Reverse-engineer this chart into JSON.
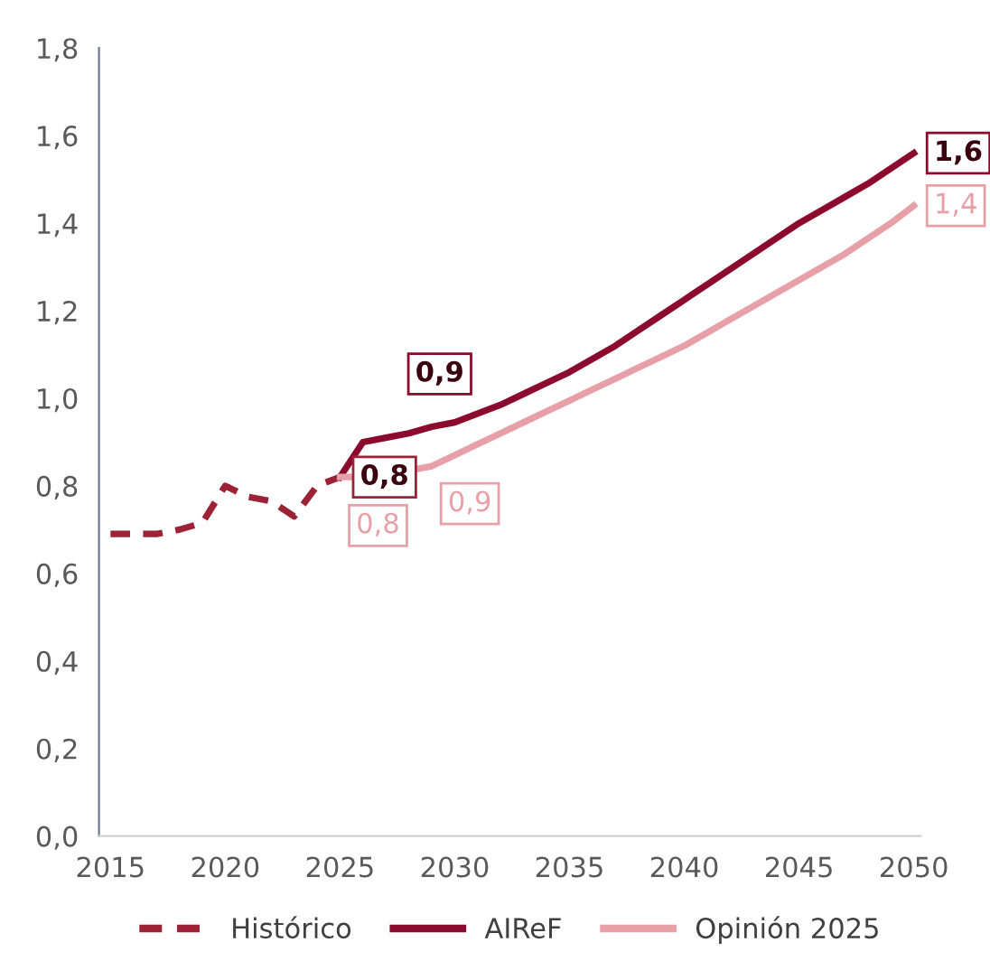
{
  "chart_data": {
    "type": "line",
    "series": [
      {
        "name": "Histórico",
        "color": "#9b2335",
        "line_style": "dashed",
        "x": [
          2015,
          2016,
          2017,
          2018,
          2019,
          2020,
          2021,
          2022,
          2023,
          2024,
          2025
        ],
        "values": [
          0.69,
          0.69,
          0.69,
          0.7,
          0.715,
          0.8,
          0.775,
          0.765,
          0.73,
          0.8,
          0.82
        ]
      },
      {
        "name": "AIReF",
        "color": "#8b0a2e",
        "line_style": "solid",
        "x": [
          2025,
          2026,
          2027,
          2028,
          2029,
          2030,
          2031,
          2032,
          2033,
          2034,
          2035,
          2036,
          2037,
          2038,
          2039,
          2040,
          2041,
          2042,
          2043,
          2044,
          2045,
          2046,
          2047,
          2048,
          2049,
          2050
        ],
        "values": [
          0.82,
          0.9,
          0.91,
          0.92,
          0.935,
          0.945,
          0.965,
          0.985,
          1.01,
          1.035,
          1.06,
          1.09,
          1.12,
          1.155,
          1.19,
          1.225,
          1.26,
          1.295,
          1.33,
          1.365,
          1.4,
          1.43,
          1.46,
          1.49,
          1.525,
          1.56
        ]
      },
      {
        "name": "Opinión 2025",
        "color": "#e8a0a8",
        "line_style": "solid",
        "x": [
          2025,
          2026,
          2027,
          2028,
          2029,
          2030,
          2031,
          2032,
          2033,
          2034,
          2035,
          2036,
          2037,
          2038,
          2039,
          2040,
          2041,
          2042,
          2043,
          2044,
          2045,
          2046,
          2047,
          2048,
          2049,
          2050
        ],
        "values": [
          0.82,
          0.82,
          0.815,
          0.835,
          0.845,
          0.87,
          0.895,
          0.92,
          0.945,
          0.97,
          0.995,
          1.02,
          1.045,
          1.07,
          1.095,
          1.12,
          1.15,
          1.18,
          1.21,
          1.24,
          1.27,
          1.3,
          1.33,
          1.365,
          1.4,
          1.44
        ]
      }
    ],
    "annotations": [
      {
        "text": "0,8",
        "x": 2025,
        "y": 0.82
      },
      {
        "text": "0,9",
        "x": 2030,
        "y": 0.945
      },
      {
        "text": "1,6",
        "x": 2050,
        "y": 1.56
      },
      {
        "text": "0,8",
        "x": 2026,
        "y": 0.82
      },
      {
        "text": "0,9",
        "x": 2030,
        "y": 0.87
      },
      {
        "text": "1,4",
        "x": 2050,
        "y": 1.44
      }
    ],
    "xlim": [
      2014.5,
      2050.3
    ],
    "xticks": [
      2015,
      2020,
      2025,
      2030,
      2035,
      2040,
      2045,
      2050
    ],
    "ylim": [
      0,
      1.8
    ],
    "yticks": [
      {
        "value": 0,
        "label": "0,0"
      },
      {
        "value": 0.2,
        "label": "0,2"
      },
      {
        "value": 0.4,
        "label": "0,4"
      },
      {
        "value": 0.6,
        "label": "0,6"
      },
      {
        "value": 0.8,
        "label": "0,8"
      },
      {
        "value": 1.0,
        "label": "1,0"
      },
      {
        "value": 1.2,
        "label": "1,2"
      },
      {
        "value": 1.4,
        "label": "1,4"
      },
      {
        "value": 1.6,
        "label": "1,6"
      },
      {
        "value": 1.8,
        "label": "1,8"
      }
    ],
    "grid": false,
    "legend": "bottom",
    "marker": "none"
  }
}
